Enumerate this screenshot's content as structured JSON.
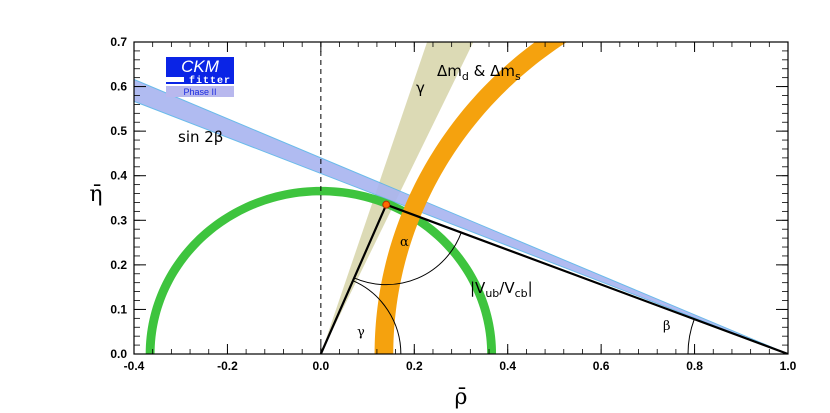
{
  "chart_data": {
    "type": "scatter",
    "xlabel": "ρ̄",
    "ylabel": "η̄",
    "xlim": [
      -0.4,
      1.0
    ],
    "ylim": [
      0.0,
      0.7
    ],
    "x_ticks": [
      "-0.4",
      "-0.2",
      "0.0",
      "0.2",
      "0.4",
      "0.6",
      "0.8",
      "1.0"
    ],
    "y_ticks": [
      "0.0",
      "0.1",
      "0.2",
      "0.3",
      "0.4",
      "0.5",
      "0.6",
      "0.7"
    ],
    "apex": {
      "rho": 0.14,
      "eta": 0.335
    },
    "constraints": [
      {
        "name": "sin 2β",
        "color": "#a8b4f0",
        "edge": "#5ab4e8",
        "slope_min": -0.405,
        "slope_max": -0.44,
        "pivot": [
          1.0,
          0.0
        ]
      },
      {
        "name": "Δmd & Δms",
        "color": "#f5a20e",
        "center": [
          1.0,
          0.0
        ],
        "radius_min": 0.845,
        "radius_max": 0.885
      },
      {
        "name": "|Vub/Vcb|",
        "color": "#3ec43e",
        "center": [
          0.0,
          0.0
        ],
        "radius_min": 0.356,
        "radius_max": 0.375
      },
      {
        "name": "γ",
        "color": "#d6d3a8",
        "angle_deg": [
          65,
          72
        ]
      }
    ],
    "angles": [
      "α",
      "β",
      "γ"
    ],
    "logo": {
      "top": "CKM",
      "bottom": "fitter",
      "caption": "Phase II",
      "color": "#0a24e6"
    },
    "labels": {
      "sin2beta": "sin 2β",
      "dm": "Δm",
      "dm_sub_d": "d",
      "dm_amp": " & Δm",
      "dm_sub_s": "s",
      "gamma_band": "γ",
      "vub_open": "|V",
      "vub_sub_ub": "ub",
      "vub_slash": "/V",
      "vub_sub_cb": "cb",
      "vub_close": "|",
      "alpha": "α",
      "beta": "β",
      "gamma_angle": "γ"
    }
  }
}
